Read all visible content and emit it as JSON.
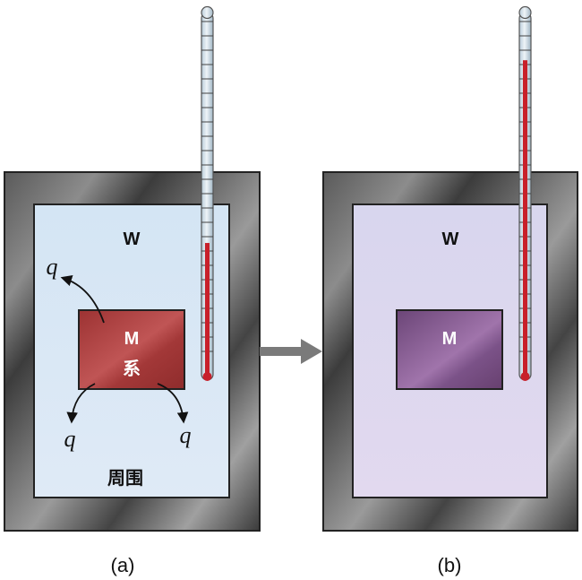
{
  "panel_a": {
    "caption": "(a)",
    "water_label": "W",
    "metal_label": "M",
    "system_label": "系",
    "surroundings_label": "周围",
    "heat_labels": [
      "q",
      "q",
      "q"
    ],
    "thermometer_fill_fraction": 0.38
  },
  "panel_b": {
    "caption": "(b)",
    "water_label": "W",
    "metal_label": "M",
    "thermometer_fill_fraction": 0.9
  },
  "colors": {
    "container_frame": "#4a4a4a",
    "water_a": "#d9e8f5",
    "water_b": "#ddd8ee",
    "metal_a": "#a83a3a",
    "metal_b": "#7a4f86",
    "thermometer_liquid": "#c8202a",
    "arrow": "#7a7a7a"
  }
}
